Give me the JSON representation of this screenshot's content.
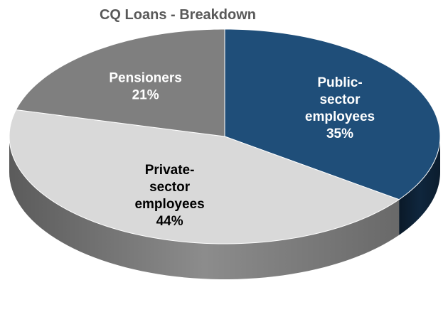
{
  "chart_data": {
    "type": "pie",
    "title": "CQ Loans - Breakdown",
    "slices": [
      {
        "name": "Public-sector employees",
        "value": 35,
        "value_label": "35%",
        "label_lines": [
          "Public-",
          "sector",
          "employees"
        ],
        "color": "#1f4e79",
        "side_color": "#0f263d",
        "label_color": "#ffffff"
      },
      {
        "name": "Private-sector employees",
        "value": 44,
        "value_label": "44%",
        "label_lines": [
          "Private-",
          "sector",
          "employees"
        ],
        "color": "#d9d9d9",
        "side_color": "#8c8c8c",
        "label_color": "#000000"
      },
      {
        "name": "Pensioners",
        "value": 21,
        "value_label": "21%",
        "label_lines": [
          "Pensioners"
        ],
        "color": "#7f7f7f",
        "side_color": "#5a5a5a",
        "label_color": "#ffffff"
      }
    ],
    "start": "12 o'clock",
    "direction": "clockwise",
    "style": "3d-tilted",
    "legend": "none",
    "data_labels": "inside"
  }
}
